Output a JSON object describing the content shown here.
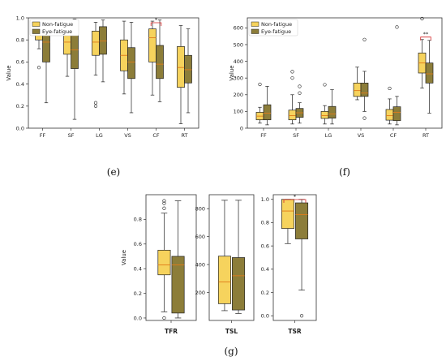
{
  "colors": {
    "nonfatigue": "#f6d35d",
    "eyefatigue": "#8c7d39",
    "median": "#e07b1a",
    "sig": "#d62728"
  },
  "chart_data": [
    {
      "id": "e",
      "type": "box",
      "caption": "(e)",
      "ylabel": "Value",
      "ylim": [
        0,
        1.0
      ],
      "yticks": [
        "0.0",
        "0.2",
        "0.4",
        "0.6",
        "0.8",
        "1.0"
      ],
      "categories": [
        "FF",
        "SF",
        "LG",
        "VS",
        "CF",
        "RT"
      ],
      "legend": [
        "Non-fatigue",
        "Eye-fatigue"
      ],
      "legend_position": "top-left",
      "series": [
        {
          "name": "Non-fatigue",
          "boxes": [
            {
              "whislo": 0.72,
              "q1": 0.8,
              "med": 0.86,
              "q3": 0.92,
              "whishi": 0.97,
              "fliers": [
                0.55
              ]
            },
            {
              "whislo": 0.47,
              "q1": 0.67,
              "med": 0.78,
              "q3": 0.86,
              "whishi": 0.94,
              "fliers": []
            },
            {
              "whislo": 0.48,
              "q1": 0.66,
              "med": 0.78,
              "q3": 0.88,
              "whishi": 0.96,
              "fliers": [
                0.2,
                0.23
              ]
            },
            {
              "whislo": 0.31,
              "q1": 0.52,
              "med": 0.66,
              "q3": 0.8,
              "whishi": 0.97,
              "fliers": []
            },
            {
              "whislo": 0.3,
              "q1": 0.6,
              "med": 0.82,
              "q3": 0.9,
              "whishi": 0.97,
              "fliers": []
            },
            {
              "whislo": 0.04,
              "q1": 0.37,
              "med": 0.55,
              "q3": 0.74,
              "whishi": 0.93,
              "fliers": []
            }
          ]
        },
        {
          "name": "Eye-fatigue",
          "boxes": [
            {
              "whislo": 0.23,
              "q1": 0.6,
              "med": 0.78,
              "q3": 0.9,
              "whishi": 0.96,
              "fliers": []
            },
            {
              "whislo": 0.08,
              "q1": 0.54,
              "med": 0.71,
              "q3": 0.88,
              "whishi": 0.99,
              "fliers": []
            },
            {
              "whislo": 0.42,
              "q1": 0.67,
              "med": 0.79,
              "q3": 0.92,
              "whishi": 0.98,
              "fliers": []
            },
            {
              "whislo": 0.14,
              "q1": 0.45,
              "med": 0.6,
              "q3": 0.73,
              "whishi": 0.96,
              "fliers": []
            },
            {
              "whislo": 0.24,
              "q1": 0.45,
              "med": 0.58,
              "q3": 0.75,
              "whishi": 0.98,
              "fliers": []
            },
            {
              "whislo": 0.14,
              "q1": 0.41,
              "med": 0.53,
              "q3": 0.66,
              "whishi": 0.9,
              "fliers": []
            }
          ]
        }
      ],
      "significance": [
        {
          "category": "CF",
          "label": "*"
        }
      ]
    },
    {
      "id": "f",
      "type": "box",
      "caption": "(f)",
      "ylabel": "Value",
      "ylim": [
        0,
        660
      ],
      "yticks": [
        "0",
        "100",
        "200",
        "300",
        "400",
        "500",
        "600"
      ],
      "categories": [
        "FF",
        "SF",
        "LG",
        "VS",
        "CF",
        "RT"
      ],
      "legend": [
        "Non-fatigue",
        "Eye-fatigue"
      ],
      "legend_position": "top-left",
      "series": [
        {
          "name": "Non-fatigue",
          "boxes": [
            {
              "whislo": 30,
              "q1": 50,
              "med": 72,
              "q3": 95,
              "whishi": 125,
              "fliers": [
                262
              ]
            },
            {
              "whislo": 25,
              "q1": 50,
              "med": 75,
              "q3": 108,
              "whishi": 200,
              "fliers": [
                300,
                338
              ]
            },
            {
              "whislo": 25,
              "q1": 58,
              "med": 75,
              "q3": 100,
              "whishi": 135,
              "fliers": [
                260
              ]
            },
            {
              "whislo": 170,
              "q1": 190,
              "med": 225,
              "q3": 270,
              "whishi": 365,
              "fliers": []
            },
            {
              "whislo": 25,
              "q1": 48,
              "med": 75,
              "q3": 112,
              "whishi": 175,
              "fliers": [
                238
              ]
            },
            {
              "whislo": 240,
              "q1": 330,
              "med": 390,
              "q3": 450,
              "whishi": 530,
              "fliers": [
                655
              ]
            }
          ]
        },
        {
          "name": "Eye-fatigue",
          "boxes": [
            {
              "whislo": 20,
              "q1": 50,
              "med": 90,
              "q3": 140,
              "whishi": 250,
              "fliers": []
            },
            {
              "whislo": 30,
              "q1": 65,
              "med": 92,
              "q3": 118,
              "whishi": 152,
              "fliers": [
                210,
                250
              ]
            },
            {
              "whislo": 25,
              "q1": 60,
              "med": 85,
              "q3": 130,
              "whishi": 230,
              "fliers": []
            },
            {
              "whislo": 100,
              "q1": 190,
              "med": 210,
              "q3": 270,
              "whishi": 340,
              "fliers": [
                60,
                530
              ]
            },
            {
              "whislo": 20,
              "q1": 45,
              "med": 95,
              "q3": 128,
              "whishi": 190,
              "fliers": [
                605
              ]
            },
            {
              "whislo": 90,
              "q1": 270,
              "med": 325,
              "q3": 390,
              "whishi": 525,
              "fliers": []
            }
          ]
        }
      ],
      "significance": [
        {
          "category": "RT",
          "label": "**"
        }
      ]
    },
    {
      "id": "g1",
      "type": "box",
      "caption": "",
      "ylabel": "Value",
      "ylim": [
        -0.02,
        1.0
      ],
      "yticks": [
        "0.0",
        "0.2",
        "0.4",
        "0.6",
        "0.8"
      ],
      "categories": [
        "TFR"
      ],
      "series": [
        {
          "name": "Non-fatigue",
          "boxes": [
            {
              "whislo": 0.05,
              "q1": 0.35,
              "med": 0.43,
              "q3": 0.55,
              "whishi": 0.85,
              "fliers": [
                0.0,
                0.89,
                0.93,
                0.95
              ]
            }
          ]
        },
        {
          "name": "Eye-fatigue",
          "boxes": [
            {
              "whislo": 0.0,
              "q1": 0.04,
              "med": 0.43,
              "q3": 0.5,
              "whishi": 0.95,
              "fliers": []
            }
          ]
        }
      ]
    },
    {
      "id": "g2",
      "type": "box",
      "caption": "",
      "ylabel": "",
      "ylim": [
        0,
        900
      ],
      "yticks": [
        "200",
        "400",
        "600",
        "800"
      ],
      "categories": [
        "TSL"
      ],
      "series": [
        {
          "name": "Non-fatigue",
          "boxes": [
            {
              "whislo": 70,
              "q1": 120,
              "med": 275,
              "q3": 460,
              "whishi": 860,
              "fliers": []
            }
          ]
        },
        {
          "name": "Eye-fatigue",
          "boxes": [
            {
              "whislo": 50,
              "q1": 75,
              "med": 320,
              "q3": 450,
              "whishi": 860,
              "fliers": []
            }
          ]
        }
      ]
    },
    {
      "id": "g3",
      "type": "box",
      "caption": "",
      "ylabel": "",
      "ylim": [
        -0.04,
        1.04
      ],
      "yticks": [
        "0.0",
        "0.2",
        "0.4",
        "0.6",
        "0.8",
        "1.0"
      ],
      "categories": [
        "TSR"
      ],
      "series": [
        {
          "name": "Non-fatigue",
          "boxes": [
            {
              "whislo": 0.62,
              "q1": 0.75,
              "med": 0.9,
              "q3": 1.0,
              "whishi": 1.0,
              "fliers": []
            }
          ]
        },
        {
          "name": "Eye-fatigue",
          "boxes": [
            {
              "whislo": 0.22,
              "q1": 0.66,
              "med": 0.87,
              "q3": 0.97,
              "whishi": 1.0,
              "fliers": [
                0.0
              ]
            }
          ]
        }
      ],
      "significance": [
        {
          "category": "TSR",
          "label": "*"
        }
      ]
    }
  ],
  "figure_caption": "(g)"
}
